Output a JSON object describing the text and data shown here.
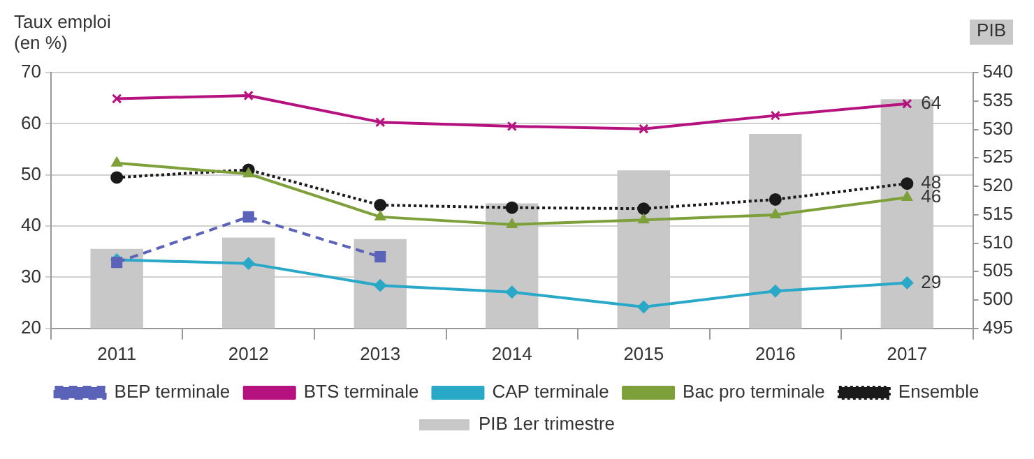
{
  "chart_data": {
    "type": "line",
    "ylabel": "Taux emploi (en %)",
    "y2label": "PIB",
    "categories": [
      "2011",
      "2012",
      "2013",
      "2014",
      "2015",
      "2016",
      "2017"
    ],
    "series": [
      {
        "name": "PIB 1er trimestre",
        "type": "bar",
        "axis": "y2",
        "color": "#c8c8c8",
        "values": [
          509,
          511,
          510.7,
          517,
          522.8,
          529.2,
          535.3
        ]
      },
      {
        "name": "BTS terminale",
        "color": "#b5127f",
        "marker": "cross",
        "line_style": "solid",
        "values": [
          64.9,
          65.5,
          60.3,
          59.5,
          59.0,
          61.6,
          63.9
        ],
        "value_labels": [
          null,
          null,
          null,
          null,
          null,
          null,
          "64"
        ]
      },
      {
        "name": "CAP terminale",
        "color": "#29a8c8",
        "marker": "diamond",
        "line_style": "solid",
        "values": [
          33.4,
          32.7,
          28.4,
          27.1,
          24.2,
          27.3,
          28.9
        ],
        "value_labels": [
          null,
          null,
          null,
          null,
          null,
          null,
          "29"
        ]
      },
      {
        "name": "BEP terminale",
        "color": "#5b63b8",
        "marker": "square",
        "line_style": "dashed",
        "values": [
          32.9,
          41.8,
          34.0,
          null,
          null,
          null,
          null
        ]
      },
      {
        "name": "Bac pro terminale",
        "color": "#7ea03a",
        "marker": "triangle",
        "line_style": "solid",
        "values": [
          52.3,
          50.2,
          41.8,
          40.3,
          41.2,
          42.2,
          45.6
        ],
        "value_labels": [
          null,
          null,
          null,
          null,
          null,
          null,
          "46"
        ]
      },
      {
        "name": "Ensemble",
        "color": "#1a1a1a",
        "marker": "circle",
        "line_style": "dotted",
        "values": [
          49.5,
          51.0,
          44.1,
          43.6,
          43.4,
          45.2,
          48.3
        ],
        "value_labels": [
          null,
          null,
          null,
          null,
          null,
          null,
          "48"
        ]
      }
    ],
    "ylim": [
      20,
      70
    ],
    "yticks": [
      20,
      30,
      40,
      50,
      60,
      70
    ],
    "y2lim": [
      495,
      540
    ],
    "y2ticks": [
      495,
      500,
      505,
      510,
      515,
      520,
      525,
      530,
      535,
      540
    ],
    "grid": "y",
    "legend": "bottom"
  }
}
